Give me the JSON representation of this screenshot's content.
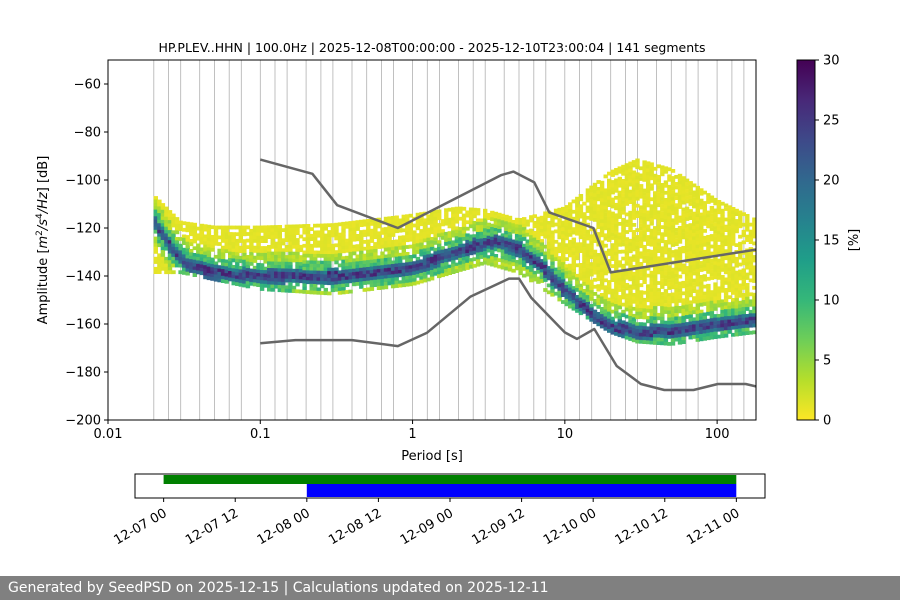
{
  "chart_data": [
    {
      "type": "heatmap",
      "title": "HP.PLEV..HHN | 100.0Hz | 2025-12-08T00:00:00 - 2025-12-10T23:00:04 | 141 segments",
      "xlabel": "Period [s]",
      "ylabel_parts": {
        "prefix": "Amplitude [",
        "m": "m",
        "p2": "2",
        "s": "/s",
        "p4": "4",
        "hz": "/Hz",
        "suffix": "] [dB]"
      },
      "x_scale": "log",
      "xlim": [
        0.01,
        180
      ],
      "ylim": [
        -200,
        -50
      ],
      "x_ticks": [
        {
          "value": 0.01,
          "label": "0.01"
        },
        {
          "value": 0.1,
          "label": "0.1"
        },
        {
          "value": 1,
          "label": "1"
        },
        {
          "value": 10,
          "label": "10"
        },
        {
          "value": 100,
          "label": "100"
        }
      ],
      "y_ticks": [
        {
          "value": -60,
          "label": "−60"
        },
        {
          "value": -80,
          "label": "−80"
        },
        {
          "value": -100,
          "label": "−100"
        },
        {
          "value": -120,
          "label": "−120"
        },
        {
          "value": -140,
          "label": "−140"
        },
        {
          "value": -160,
          "label": "−160"
        },
        {
          "value": -180,
          "label": "−180"
        },
        {
          "value": -200,
          "label": "−200"
        }
      ],
      "vertical_grid_periods": [
        0.02,
        0.025,
        0.03,
        0.04,
        0.05,
        0.0625,
        0.075,
        0.1,
        0.125,
        0.15,
        0.2,
        0.25,
        0.3,
        0.4,
        0.5,
        0.625,
        0.75,
        1,
        1.25,
        1.5,
        2,
        2.5,
        3,
        4,
        5,
        6.25,
        7.5,
        10,
        12.5,
        15,
        20,
        25,
        30,
        40,
        50,
        62.5,
        75,
        100,
        125,
        150
      ],
      "colorbar": {
        "label": "[%]",
        "range": [
          0,
          30
        ],
        "colormap": [
          "#fde725",
          "#b5de2b",
          "#6ece58",
          "#35b779",
          "#1f9e89",
          "#26828e",
          "#31688e",
          "#3e4989",
          "#482878",
          "#440154"
        ],
        "ticks": [
          {
            "value": 0,
            "label": "0"
          },
          {
            "value": 5,
            "label": "5"
          },
          {
            "value": 10,
            "label": "10"
          },
          {
            "value": 15,
            "label": "15"
          },
          {
            "value": 20,
            "label": "20"
          },
          {
            "value": 25,
            "label": "25"
          },
          {
            "value": 30,
            "label": "30"
          }
        ]
      },
      "noise_models": {
        "color": "#666666",
        "new_high_noise_model": [
          [
            0.1,
            -91.5
          ],
          [
            0.22,
            -97.4
          ],
          [
            0.32,
            -110.5
          ],
          [
            0.8,
            -120
          ],
          [
            3.8,
            -98
          ],
          [
            4.6,
            -96.5
          ],
          [
            6.3,
            -101
          ],
          [
            7.9,
            -113.5
          ],
          [
            15.4,
            -120
          ],
          [
            20,
            -138.5
          ],
          [
            180,
            -129
          ]
        ],
        "new_low_noise_model": [
          [
            0.1,
            -168
          ],
          [
            0.17,
            -166.7
          ],
          [
            0.4,
            -166.7
          ],
          [
            0.8,
            -169.2
          ],
          [
            1.24,
            -163.7
          ],
          [
            2.4,
            -148.6
          ],
          [
            4.3,
            -141.1
          ],
          [
            5,
            -141.1
          ],
          [
            6,
            -149
          ],
          [
            10,
            -163.5
          ],
          [
            12,
            -166.2
          ],
          [
            15.6,
            -162.1
          ],
          [
            21.9,
            -177.5
          ],
          [
            31.6,
            -185
          ],
          [
            45,
            -187.5
          ],
          [
            70,
            -187.5
          ],
          [
            101,
            -185
          ],
          [
            154,
            -185
          ],
          [
            180,
            -186
          ]
        ]
      },
      "density_ridges": [
        {
          "label": "dominant mode",
          "weight": 1.0,
          "points": [
            [
              0.02,
              -116
            ],
            [
              0.025,
              -126
            ],
            [
              0.032,
              -134
            ],
            [
              0.05,
              -138
            ],
            [
              0.1,
              -139.5
            ],
            [
              0.3,
              -139.5
            ],
            [
              0.6,
              -138
            ],
            [
              1,
              -136
            ],
            [
              1.5,
              -132
            ],
            [
              2.5,
              -127
            ],
            [
              3.5,
              -125
            ],
            [
              5,
              -128
            ],
            [
              7,
              -135
            ],
            [
              10,
              -145
            ],
            [
              15,
              -155
            ],
            [
              20,
              -160
            ],
            [
              30,
              -163
            ],
            [
              50,
              -162
            ],
            [
              100,
              -160
            ],
            [
              180,
              -158
            ]
          ]
        },
        {
          "label": "upper envelope",
          "weight": 0.2,
          "points": [
            [
              0.02,
              -108
            ],
            [
              0.03,
              -119
            ],
            [
              0.05,
              -121
            ],
            [
              0.1,
              -121
            ],
            [
              0.3,
              -120
            ],
            [
              1,
              -116
            ],
            [
              2,
              -113
            ],
            [
              3,
              -114
            ],
            [
              5,
              -118
            ],
            [
              10,
              -113
            ],
            [
              20,
              -98
            ],
            [
              30,
              -93
            ],
            [
              50,
              -97
            ],
            [
              100,
              -110
            ],
            [
              180,
              -118
            ]
          ]
        },
        {
          "label": "lower envelope",
          "weight": 0.2,
          "points": [
            [
              0.03,
              -137
            ],
            [
              0.1,
              -144
            ],
            [
              0.3,
              -146
            ],
            [
              1,
              -142
            ],
            [
              3,
              -133
            ],
            [
              5,
              -137
            ],
            [
              10,
              -150
            ],
            [
              20,
              -162
            ],
            [
              30,
              -166
            ],
            [
              50,
              -167
            ],
            [
              100,
              -164
            ],
            [
              180,
              -162
            ]
          ]
        }
      ]
    },
    {
      "type": "timeline",
      "x_ticks": [
        {
          "value": 0,
          "label": "12-07 00"
        },
        {
          "value": 12,
          "label": "12-07 12"
        },
        {
          "value": 24,
          "label": "12-08 00"
        },
        {
          "value": 36,
          "label": "12-08 12"
        },
        {
          "value": 48,
          "label": "12-09 00"
        },
        {
          "value": 60,
          "label": "12-09 12"
        },
        {
          "value": 72,
          "label": "12-10 00"
        },
        {
          "value": 84,
          "label": "12-10 12"
        },
        {
          "value": 96,
          "label": "12-11 00"
        }
      ],
      "xlim_hours": [
        -4.8,
        100.8
      ],
      "bars": [
        {
          "name": "available data",
          "color": "#008000",
          "start_hours": 0,
          "end_hours": 96
        },
        {
          "name": "used data",
          "color": "#0000ff",
          "start_hours": 24,
          "end_hours": 96
        }
      ]
    }
  ],
  "footer": {
    "text": "Generated by SeedPSD on 2025-12-15 | Calculations updated on 2025-12-11"
  }
}
